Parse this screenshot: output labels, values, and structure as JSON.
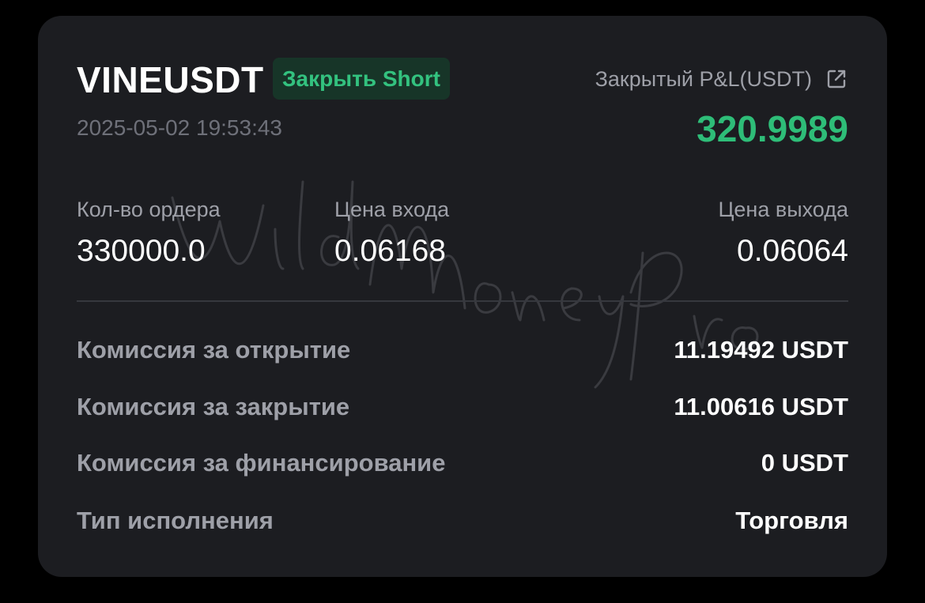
{
  "header": {
    "symbol": "VINEUSDT",
    "side_badge": "Закрыть Short",
    "timestamp": "2025-05-02 19:53:43",
    "pnl_label": "Закрытый P&L(USDT)",
    "pnl_value": "320.9989",
    "share_icon": "external-link-icon"
  },
  "stats": [
    {
      "label": "Кол-во ордера",
      "value": "330000.0"
    },
    {
      "label": "Цена входа",
      "value": "0.06168"
    },
    {
      "label": "Цена выхода",
      "value": "0.06064"
    }
  ],
  "details": [
    {
      "label": "Комиссия за открытие",
      "value": "11.19492 USDT"
    },
    {
      "label": "Комиссия за закрытие",
      "value": "11.00616 USDT"
    },
    {
      "label": "Комиссия за финансирование",
      "value": "0 USDT"
    },
    {
      "label": "Тип исполнения",
      "value": "Торговля"
    }
  ],
  "colors": {
    "background": "#000000",
    "card": "#1c1d21",
    "profit_green": "#2ebd78",
    "badge_bg": "#173528",
    "muted_text": "#9ea0a8"
  }
}
